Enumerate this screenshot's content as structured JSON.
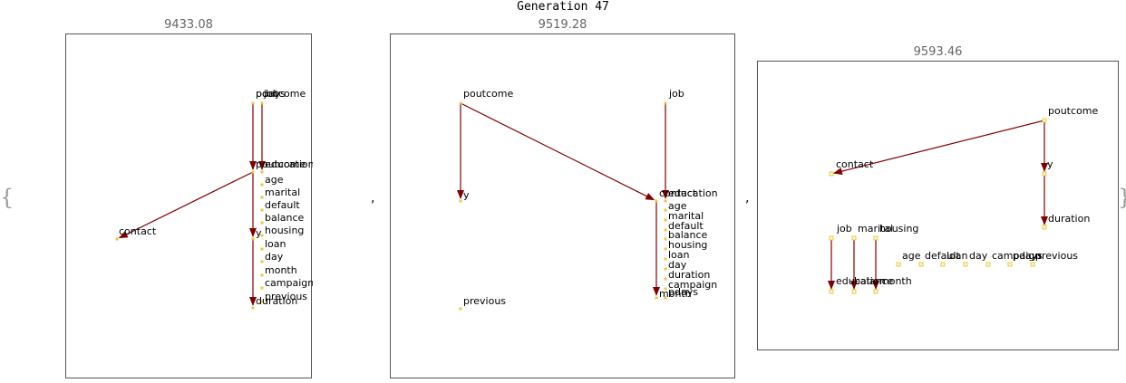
{
  "title": "Generation 47",
  "delimiters": {
    "open": "{",
    "close": "}",
    "separator": ","
  },
  "colors": {
    "edge": "#800000",
    "node": "#e8c840",
    "frame": "#555555",
    "score": "#666666"
  },
  "graphs": [
    {
      "score": "9433.08",
      "nodes": [
        {
          "id": "poutcome_top",
          "label": "poutcome"
        },
        {
          "id": "job_top",
          "label": "job"
        },
        {
          "id": "pdays_top",
          "label": "pdays"
        },
        {
          "id": "contact",
          "label": "contact"
        },
        {
          "id": "poutcome",
          "label": "poutcome"
        },
        {
          "id": "education",
          "label": "education"
        },
        {
          "id": "age",
          "label": "age"
        },
        {
          "id": "marital",
          "label": "marital"
        },
        {
          "id": "default",
          "label": "default"
        },
        {
          "id": "balance",
          "label": "balance"
        },
        {
          "id": "housing",
          "label": "housing"
        },
        {
          "id": "y",
          "label": "y"
        },
        {
          "id": "loan",
          "label": "loan"
        },
        {
          "id": "day",
          "label": "day"
        },
        {
          "id": "month",
          "label": "month"
        },
        {
          "id": "campaign",
          "label": "campaign"
        },
        {
          "id": "previous",
          "label": "previous"
        },
        {
          "id": "duration",
          "label": "duration"
        }
      ],
      "edges": [
        {
          "from": "pdays_top",
          "to": "poutcome"
        },
        {
          "from": "job_top",
          "to": "education"
        },
        {
          "from": "poutcome",
          "to": "contact"
        },
        {
          "from": "poutcome",
          "to": "y"
        },
        {
          "from": "y",
          "to": "duration"
        }
      ]
    },
    {
      "score": "9519.28",
      "nodes": [
        {
          "id": "poutcome",
          "label": "poutcome"
        },
        {
          "id": "job",
          "label": "job"
        },
        {
          "id": "y",
          "label": "y"
        },
        {
          "id": "contact",
          "label": "contact"
        },
        {
          "id": "education",
          "label": "education"
        },
        {
          "id": "age",
          "label": "age"
        },
        {
          "id": "marital",
          "label": "marital"
        },
        {
          "id": "default",
          "label": "default"
        },
        {
          "id": "balance",
          "label": "balance"
        },
        {
          "id": "housing",
          "label": "housing"
        },
        {
          "id": "loan",
          "label": "loan"
        },
        {
          "id": "day",
          "label": "day"
        },
        {
          "id": "duration",
          "label": "duration"
        },
        {
          "id": "campaign",
          "label": "campaign"
        },
        {
          "id": "month",
          "label": "month"
        },
        {
          "id": "pdays",
          "label": "pdays"
        },
        {
          "id": "previous",
          "label": "previous"
        }
      ],
      "edges": [
        {
          "from": "poutcome",
          "to": "y"
        },
        {
          "from": "poutcome",
          "to": "contact"
        },
        {
          "from": "job",
          "to": "education"
        },
        {
          "from": "contact",
          "to": "month"
        }
      ]
    },
    {
      "score": "9593.46",
      "nodes": [
        {
          "id": "poutcome",
          "label": "poutcome"
        },
        {
          "id": "contact",
          "label": "contact"
        },
        {
          "id": "y",
          "label": "y"
        },
        {
          "id": "duration",
          "label": "duration"
        },
        {
          "id": "job",
          "label": "job"
        },
        {
          "id": "marital",
          "label": "marital"
        },
        {
          "id": "housing",
          "label": "housing"
        },
        {
          "id": "age",
          "label": "age"
        },
        {
          "id": "default",
          "label": "default"
        },
        {
          "id": "loan",
          "label": "loan"
        },
        {
          "id": "day",
          "label": "day"
        },
        {
          "id": "campaign",
          "label": "campaign"
        },
        {
          "id": "pdays",
          "label": "pdays"
        },
        {
          "id": "previous",
          "label": "previous"
        },
        {
          "id": "education",
          "label": "education"
        },
        {
          "id": "balance",
          "label": "balance"
        },
        {
          "id": "month",
          "label": "month"
        }
      ],
      "edges": [
        {
          "from": "poutcome",
          "to": "contact"
        },
        {
          "from": "poutcome",
          "to": "y"
        },
        {
          "from": "y",
          "to": "duration"
        },
        {
          "from": "job",
          "to": "education"
        },
        {
          "from": "marital",
          "to": "balance"
        },
        {
          "from": "housing",
          "to": "month"
        }
      ]
    }
  ]
}
